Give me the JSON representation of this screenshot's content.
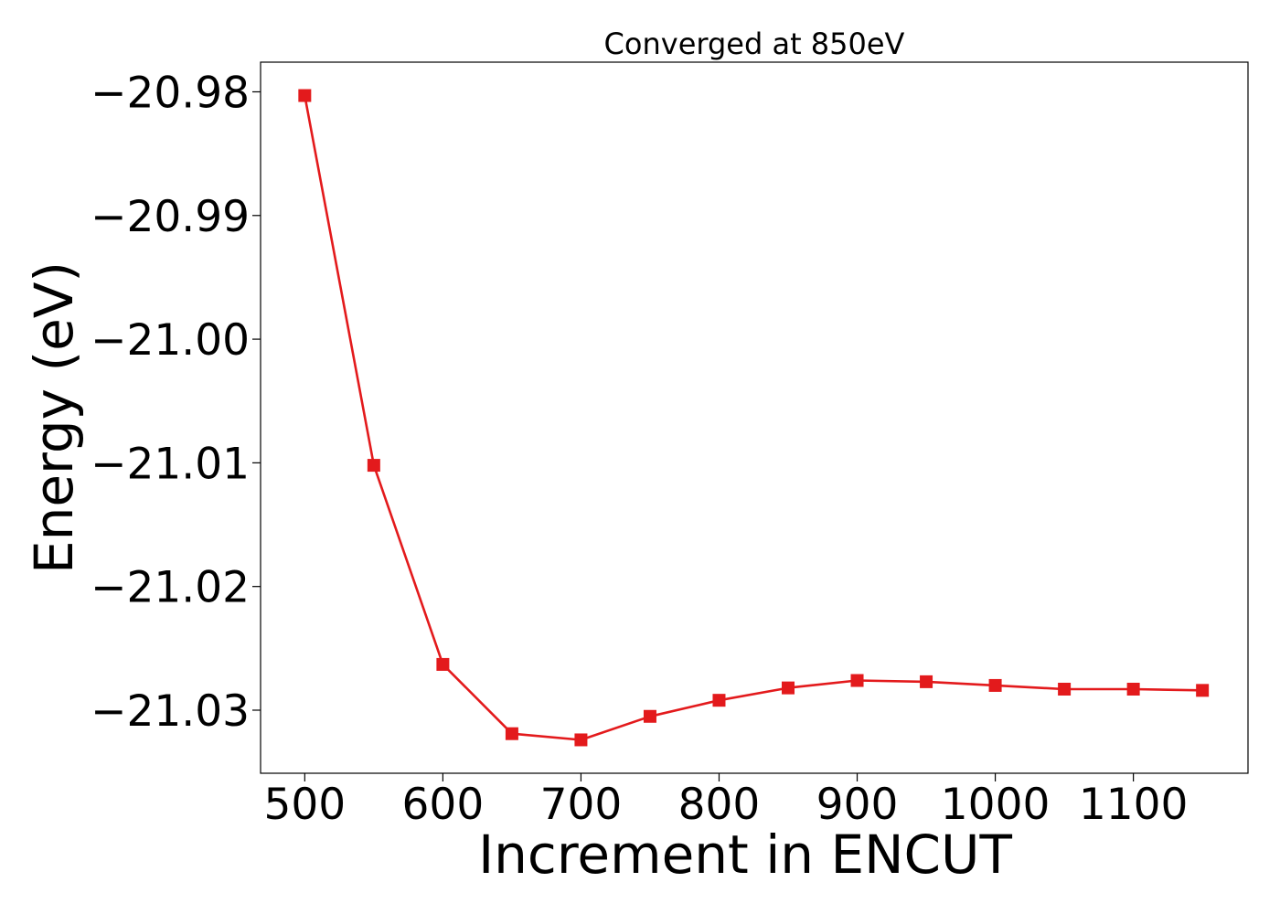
{
  "chart_data": {
    "type": "line",
    "title": "Converged at 850eV",
    "xlabel": "Increment in ENCUT",
    "ylabel": "Energy (eV)",
    "x": [
      500,
      550,
      600,
      650,
      700,
      750,
      800,
      850,
      900,
      950,
      1000,
      1050,
      1100,
      1150
    ],
    "series": [
      {
        "values": [
          -20.9803,
          -21.0102,
          -21.0263,
          -21.0319,
          -21.0324,
          -21.0305,
          -21.0292,
          -21.0282,
          -21.0276,
          -21.0277,
          -21.028,
          -21.0283,
          -21.0283,
          -21.0284
        ],
        "color": "#e31a1c",
        "marker": "square"
      }
    ],
    "xlim": [
      468,
      1183
    ],
    "ylim": [
      -21.0351,
      -20.9776
    ],
    "xticks": [
      500,
      600,
      700,
      800,
      900,
      1000,
      1100
    ],
    "xtick_labels": [
      "500",
      "600",
      "700",
      "800",
      "900",
      "1000",
      "1100"
    ],
    "yticks": [
      -20.98,
      -20.99,
      -21.0,
      -21.01,
      -21.02,
      -21.03
    ],
    "ytick_labels": [
      "−20.98",
      "−20.99",
      "−21.00",
      "−21.01",
      "−21.02",
      "−21.03"
    ],
    "grid": false,
    "legend": "none"
  }
}
